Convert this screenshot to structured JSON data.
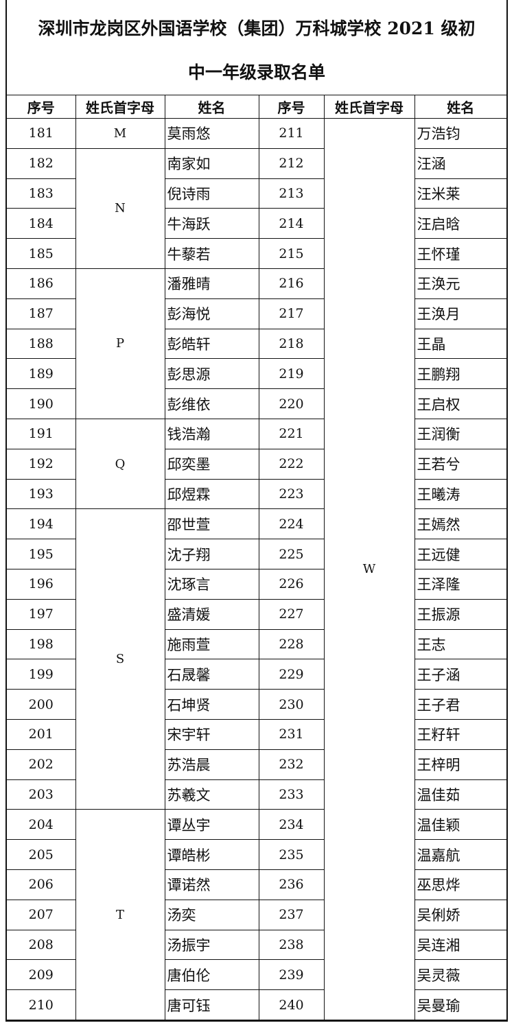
{
  "title": {
    "line1": "深圳市龙岗区外国语学校（集团）万科城学校 2021 级初",
    "line2": "中一年级录取名单"
  },
  "headers": [
    "序号",
    "姓氏首字母",
    "姓名",
    "序号",
    "姓氏首字母",
    "姓名"
  ],
  "left": {
    "groups": [
      {
        "letter": "M",
        "span": 1
      },
      {
        "letter": "N",
        "span": 4
      },
      {
        "letter": "P",
        "span": 5
      },
      {
        "letter": "Q",
        "span": 3
      },
      {
        "letter": "S",
        "span": 10
      },
      {
        "letter": "T",
        "span": 7
      }
    ],
    "rows": [
      {
        "no": "181",
        "name": "莫雨悠"
      },
      {
        "no": "182",
        "name": "南家如"
      },
      {
        "no": "183",
        "name": "倪诗雨"
      },
      {
        "no": "184",
        "name": "牛海跃"
      },
      {
        "no": "185",
        "name": "牛藜若"
      },
      {
        "no": "186",
        "name": "潘雅晴"
      },
      {
        "no": "187",
        "name": "彭海悦"
      },
      {
        "no": "188",
        "name": "彭皓轩"
      },
      {
        "no": "189",
        "name": "彭思源"
      },
      {
        "no": "190",
        "name": "彭维依"
      },
      {
        "no": "191",
        "name": "钱浩瀚"
      },
      {
        "no": "192",
        "name": "邱奕墨"
      },
      {
        "no": "193",
        "name": "邱煜霖"
      },
      {
        "no": "194",
        "name": "邵世萱"
      },
      {
        "no": "195",
        "name": "沈子翔"
      },
      {
        "no": "196",
        "name": "沈琢言"
      },
      {
        "no": "197",
        "name": "盛清媛"
      },
      {
        "no": "198",
        "name": "施雨萱"
      },
      {
        "no": "199",
        "name": "石晟馨"
      },
      {
        "no": "200",
        "name": "石坤贤"
      },
      {
        "no": "201",
        "name": "宋宇轩"
      },
      {
        "no": "202",
        "name": "苏浩晨"
      },
      {
        "no": "203",
        "name": "苏羲文"
      },
      {
        "no": "204",
        "name": "谭丛宇"
      },
      {
        "no": "205",
        "name": "谭皓彬"
      },
      {
        "no": "206",
        "name": "谭诺然"
      },
      {
        "no": "207",
        "name": "汤奕"
      },
      {
        "no": "208",
        "name": "汤振宇"
      },
      {
        "no": "209",
        "name": "唐伯伦"
      },
      {
        "no": "210",
        "name": "唐可钰"
      }
    ]
  },
  "right": {
    "groups": [
      {
        "letter": "W",
        "span": 30
      }
    ],
    "rows": [
      {
        "no": "211",
        "name": "万浩钧"
      },
      {
        "no": "212",
        "name": "汪涵"
      },
      {
        "no": "213",
        "name": "汪米莱"
      },
      {
        "no": "214",
        "name": "汪启晗"
      },
      {
        "no": "215",
        "name": "王怀瑾"
      },
      {
        "no": "216",
        "name": "王涣元"
      },
      {
        "no": "217",
        "name": "王涣月"
      },
      {
        "no": "218",
        "name": "王晶"
      },
      {
        "no": "219",
        "name": "王鹏翔"
      },
      {
        "no": "220",
        "name": "王启权"
      },
      {
        "no": "221",
        "name": "王润衡"
      },
      {
        "no": "222",
        "name": "王若兮"
      },
      {
        "no": "223",
        "name": "王曦涛"
      },
      {
        "no": "224",
        "name": "王嫣然"
      },
      {
        "no": "225",
        "name": "王远健"
      },
      {
        "no": "226",
        "name": "王泽隆"
      },
      {
        "no": "227",
        "name": "王振源"
      },
      {
        "no": "228",
        "name": "王志"
      },
      {
        "no": "229",
        "name": "王子涵"
      },
      {
        "no": "230",
        "name": "王子君"
      },
      {
        "no": "231",
        "name": "王籽轩"
      },
      {
        "no": "232",
        "name": "王梓明"
      },
      {
        "no": "233",
        "name": "温佳茹"
      },
      {
        "no": "234",
        "name": "温佳颖"
      },
      {
        "no": "235",
        "name": "温嘉航"
      },
      {
        "no": "236",
        "name": "巫思烨"
      },
      {
        "no": "237",
        "name": "吴俐娇"
      },
      {
        "no": "238",
        "name": "吴连湘"
      },
      {
        "no": "239",
        "name": "吴灵薇"
      },
      {
        "no": "240",
        "name": "吴曼瑜"
      }
    ]
  }
}
